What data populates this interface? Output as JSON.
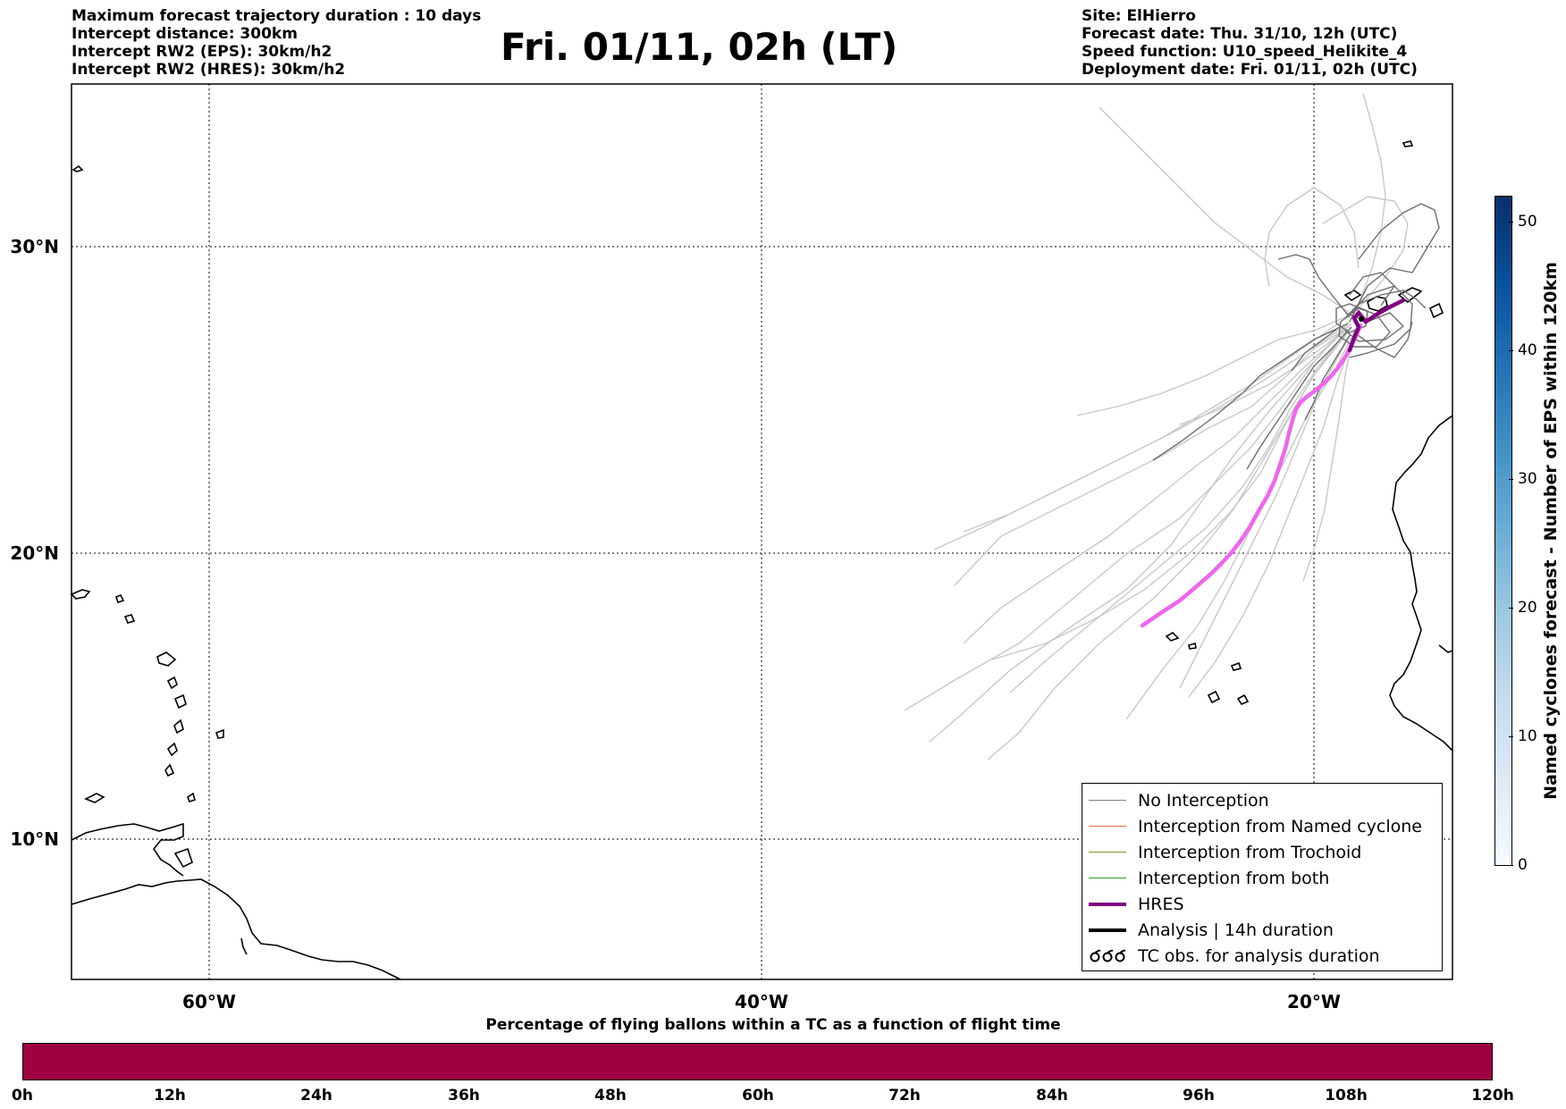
{
  "header_left": [
    "Maximum forecast trajectory duration : 10 days",
    "Intercept distance: 300km",
    "Intercept RW2 (EPS):  30km/h2",
    "Intercept RW2 (HRES): 30km/h2"
  ],
  "title": "Fri. 01/11, 02h (LT)",
  "header_right": [
    "Site: ElHierro",
    "Forecast date: Thu. 31/10, 12h (UTC)",
    "Speed function: U10_speed_Helikite_4",
    "Deployment date: Fri. 01/11, 02h (UTC)"
  ],
  "map": {
    "lon_range": [
      -65,
      15
    ],
    "lat_range": [
      5,
      35
    ],
    "lon_ticks": [
      {
        "value": -60,
        "label": "60°W"
      },
      {
        "value": -40,
        "label": "40°W"
      },
      {
        "value": -20,
        "label": "20°W"
      }
    ],
    "lat_ticks": [
      {
        "value": 30,
        "label": "30°N"
      },
      {
        "value": 20,
        "label": "20°N"
      },
      {
        "value": 10,
        "label": "10°N"
      }
    ],
    "grid": true
  },
  "legend": {
    "items": [
      {
        "label": "No Interception",
        "color": "#808080"
      },
      {
        "label": "Interception from Named cyclone",
        "color": "#f46d43"
      },
      {
        "label": "Interception from Trochoid",
        "color": "#8c8c2c"
      },
      {
        "label": "Interception from both",
        "color": "#2ca02c"
      },
      {
        "label": "HRES",
        "color": "#800080"
      },
      {
        "label": "Analysis | 14h duration",
        "color": "#000000"
      },
      {
        "label": "TC obs. for analysis duration",
        "color": "#000000",
        "icon": "cyclone-symbols-icon"
      }
    ]
  },
  "colorbar_vertical": {
    "label": "Named cyclones forecast - Number of EPS within 120km",
    "ticks": [
      "0",
      "10",
      "20",
      "30",
      "40",
      "50"
    ],
    "range": [
      0,
      52
    ]
  },
  "colorbar_horizontal": {
    "title": "Percentage of flying ballons within a TC as a function of flight time",
    "ticks": [
      "0h",
      "12h",
      "24h",
      "36h",
      "48h",
      "60h",
      "72h",
      "84h",
      "96h",
      "108h",
      "120h"
    ],
    "color": "#9e0142"
  }
}
